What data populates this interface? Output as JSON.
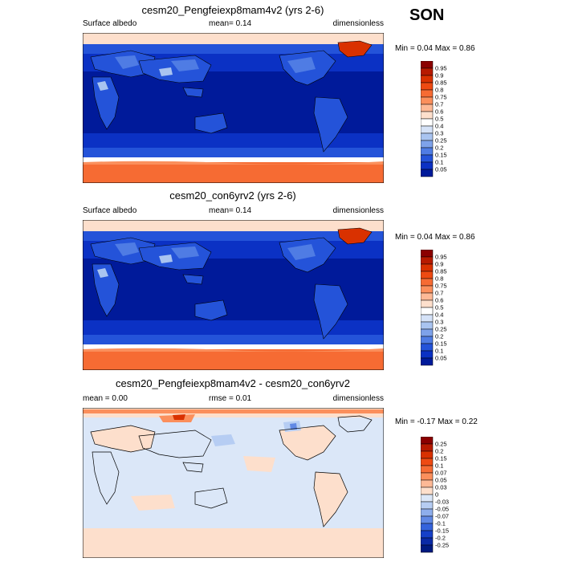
{
  "season": "SON",
  "panels": [
    {
      "title": "cesm20_Pengfeiexp8mam4v2 (yrs 2-6)",
      "left_label": "Surface albedo",
      "center_label": "mean=   0.14",
      "right_label": "dimensionless",
      "minmax": "Min =  0.04 Max =  0.86",
      "colorbar": {
        "labels": [
          "0.95",
          "0.9",
          "0.85",
          "0.8",
          "0.75",
          "0.7",
          "0.6",
          "0.5",
          "0.4",
          "0.3",
          "0.25",
          "0.2",
          "0.15",
          "0.1",
          "0.05"
        ],
        "colors": [
          "#8b0000",
          "#b71a00",
          "#d93100",
          "#ee4a12",
          "#f66b33",
          "#fb8f5c",
          "#fdb996",
          "#fddfcc",
          "#ffffff",
          "#d5e2f7",
          "#a9c4f0",
          "#7ea2ea",
          "#4f7ce4",
          "#2453d9",
          "#0b31c4",
          "#001a9a"
        ]
      }
    },
    {
      "title": "cesm20_con6yrv2 (yrs 2-6)",
      "left_label": "Surface albedo",
      "center_label": "mean=   0.14",
      "right_label": "dimensionless",
      "minmax": "Min =  0.04 Max =  0.86",
      "colorbar": {
        "labels": [
          "0.95",
          "0.9",
          "0.85",
          "0.8",
          "0.75",
          "0.7",
          "0.6",
          "0.5",
          "0.4",
          "0.3",
          "0.25",
          "0.2",
          "0.15",
          "0.1",
          "0.05"
        ],
        "colors": [
          "#8b0000",
          "#b71a00",
          "#d93100",
          "#ee4a12",
          "#f66b33",
          "#fb8f5c",
          "#fdb996",
          "#fddfcc",
          "#ffffff",
          "#d5e2f7",
          "#a9c4f0",
          "#7ea2ea",
          "#4f7ce4",
          "#2453d9",
          "#0b31c4",
          "#001a9a"
        ]
      }
    },
    {
      "title": "cesm20_Pengfeiexp8mam4v2 - cesm20_con6yrv2",
      "left_label": "mean =   0.00",
      "center_label": "rmse =   0.01",
      "right_label": "dimensionless",
      "minmax": "Min =  -0.17 Max =  0.22",
      "colorbar": {
        "labels": [
          "0.25",
          "0.2",
          "0.15",
          "0.1",
          "0.07",
          "0.05",
          "0.03",
          "0",
          "-0.03",
          "-0.05",
          "-0.07",
          "-0.1",
          "-0.15",
          "-0.2",
          "-0.25"
        ],
        "colors": [
          "#8b0000",
          "#b71a00",
          "#d93100",
          "#ee4a12",
          "#f66b33",
          "#fb8f5c",
          "#fdb996",
          "#fddfcc",
          "#dbe7f8",
          "#b6cdf3",
          "#8eaeec",
          "#6189e5",
          "#3563dc",
          "#1640c8",
          "#0a2aa6",
          "#001a80"
        ]
      }
    }
  ],
  "chart_data": [
    {
      "type": "heatmap",
      "title": "cesm20_Pengfeiexp8mam4v2 (yrs 2-6)",
      "variable": "Surface albedo",
      "units": "dimensionless",
      "mean": 0.14,
      "min": 0.04,
      "max": 0.86,
      "levels": [
        0.05,
        0.1,
        0.15,
        0.2,
        0.25,
        0.3,
        0.4,
        0.5,
        0.6,
        0.7,
        0.75,
        0.8,
        0.85,
        0.9,
        0.95
      ]
    },
    {
      "type": "heatmap",
      "title": "cesm20_con6yrv2 (yrs 2-6)",
      "variable": "Surface albedo",
      "units": "dimensionless",
      "mean": 0.14,
      "min": 0.04,
      "max": 0.86,
      "levels": [
        0.05,
        0.1,
        0.15,
        0.2,
        0.25,
        0.3,
        0.4,
        0.5,
        0.6,
        0.7,
        0.75,
        0.8,
        0.85,
        0.9,
        0.95
      ]
    },
    {
      "type": "heatmap",
      "title": "cesm20_Pengfeiexp8mam4v2 - cesm20_con6yrv2",
      "units": "dimensionless",
      "mean": 0.0,
      "rmse": 0.01,
      "min": -0.17,
      "max": 0.22,
      "levels": [
        -0.25,
        -0.2,
        -0.15,
        -0.1,
        -0.07,
        -0.05,
        -0.03,
        0,
        0.03,
        0.05,
        0.07,
        0.1,
        0.15,
        0.2,
        0.25
      ]
    }
  ]
}
